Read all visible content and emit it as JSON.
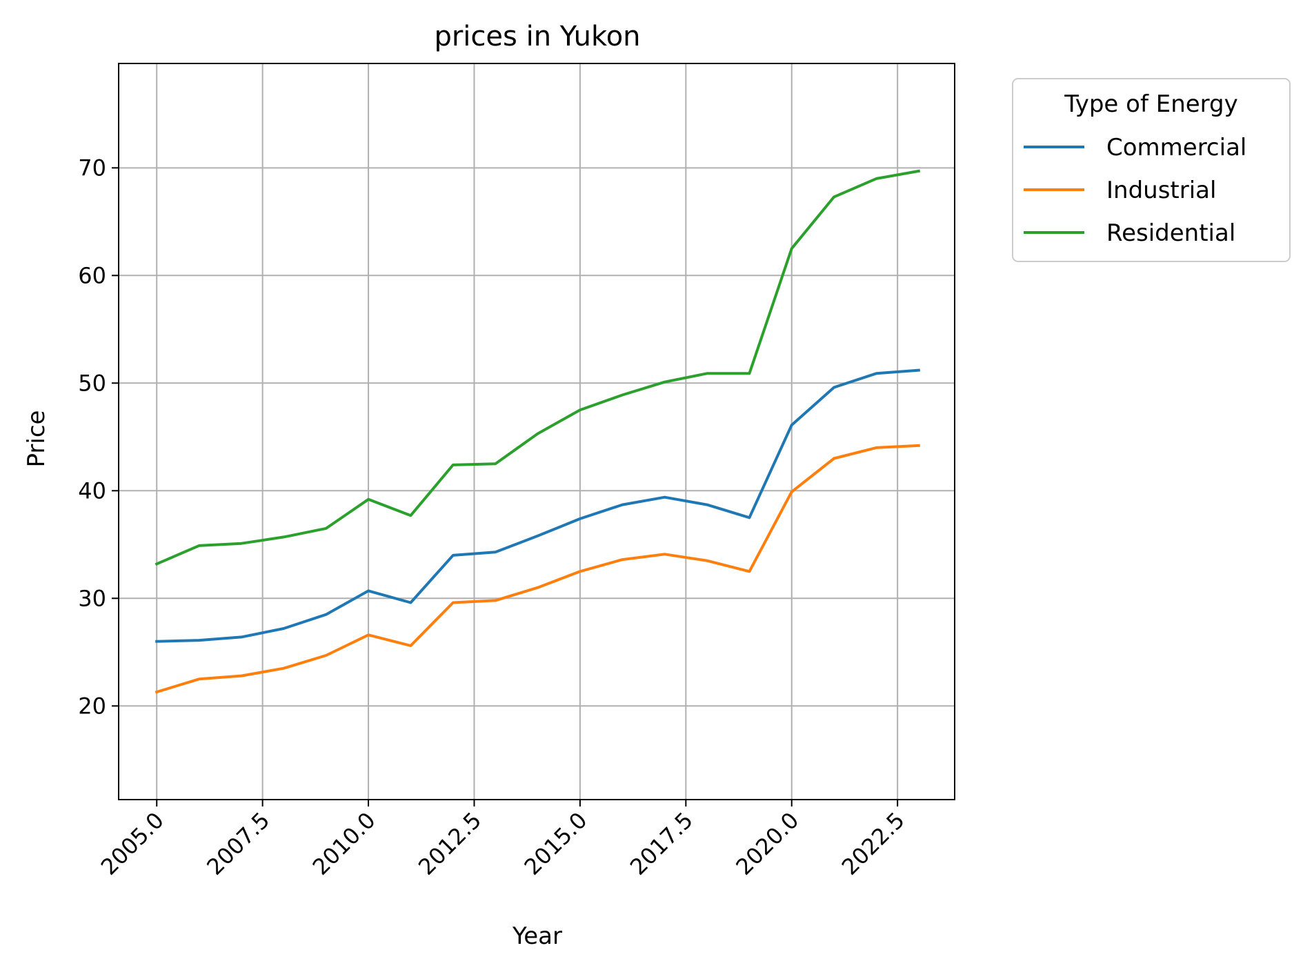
{
  "chart_data": {
    "type": "line",
    "title": "prices in Yukon",
    "xlabel": "Year",
    "ylabel": "Price",
    "xlim": [
      2004.1,
      2023.85
    ],
    "ylim": [
      11.3,
      79.7
    ],
    "xticks": [
      2005.0,
      2007.5,
      2010.0,
      2012.5,
      2015.0,
      2017.5,
      2020.0,
      2022.5
    ],
    "xtick_labels": [
      "2005.0",
      "2007.5",
      "2010.0",
      "2012.5",
      "2015.0",
      "2017.5",
      "2020.0",
      "2022.5"
    ],
    "yticks": [
      20,
      30,
      40,
      50,
      60,
      70
    ],
    "ytick_labels": [
      "20",
      "30",
      "40",
      "50",
      "60",
      "70"
    ],
    "grid": true,
    "legend": {
      "title": "Type of Energy",
      "placement": "outside-top-right"
    },
    "x": [
      2005,
      2006,
      2007,
      2008,
      2009,
      2010,
      2011,
      2012,
      2013,
      2014,
      2015,
      2016,
      2017,
      2018,
      2019,
      2020,
      2021,
      2022,
      2023
    ],
    "series": [
      {
        "name": "Commercial",
        "color": "#1f77b4",
        "values": [
          26.0,
          26.1,
          26.4,
          27.2,
          28.5,
          30.7,
          29.6,
          34.0,
          34.3,
          35.8,
          37.4,
          38.7,
          39.4,
          38.7,
          37.5,
          46.1,
          49.6,
          50.9,
          51.2
        ]
      },
      {
        "name": "Industrial",
        "color": "#ff7f0e",
        "values": [
          21.3,
          22.5,
          22.8,
          23.5,
          24.7,
          26.6,
          25.6,
          29.6,
          29.8,
          31.0,
          32.5,
          33.6,
          34.1,
          33.5,
          32.5,
          39.9,
          43.0,
          44.0,
          44.2
        ]
      },
      {
        "name": "Residential",
        "color": "#2ca02c",
        "values": [
          33.2,
          34.9,
          35.1,
          35.7,
          36.5,
          39.2,
          37.7,
          42.4,
          42.5,
          45.3,
          47.5,
          48.9,
          50.1,
          50.9,
          50.9,
          62.5,
          67.3,
          69.0,
          69.7
        ]
      }
    ]
  }
}
